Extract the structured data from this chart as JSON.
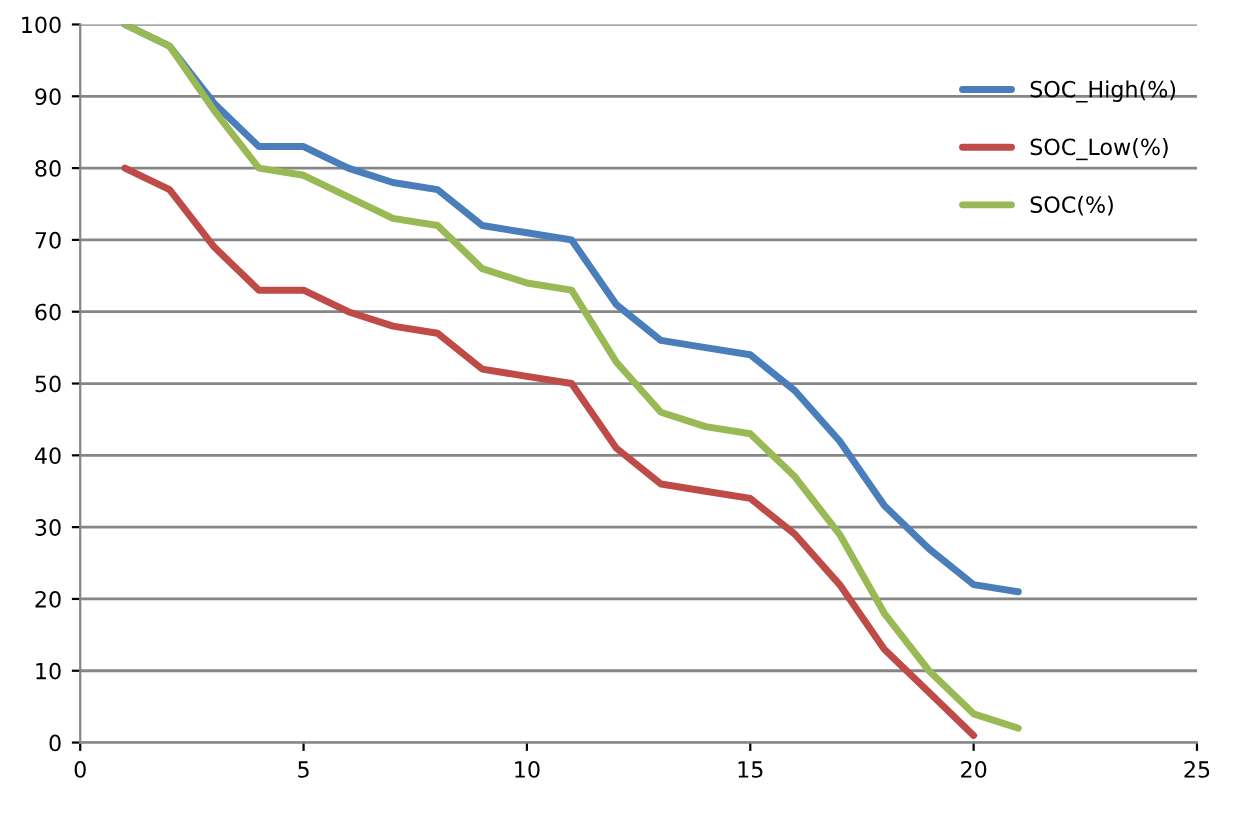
{
  "chart_data": {
    "type": "line",
    "xlim": [
      0,
      25
    ],
    "xticks": [
      0,
      5,
      10,
      15,
      20,
      25
    ],
    "ylim": [
      0,
      100
    ],
    "yticks": [
      0,
      10,
      20,
      30,
      40,
      50,
      60,
      70,
      80,
      90,
      100
    ],
    "grid": "y",
    "legend": "top right",
    "marker": "none",
    "line_style": "solid",
    "series": [
      {
        "name": "SOC_High(%)",
        "color": "#4a7ebb",
        "x": [
          1,
          2,
          3,
          4,
          5,
          6,
          7,
          8,
          9,
          10,
          11,
          12,
          13,
          14,
          15,
          16,
          17,
          18,
          19,
          20,
          21
        ],
        "values": [
          100,
          97,
          89,
          83,
          83,
          80,
          78,
          77,
          72,
          71,
          70,
          61,
          56,
          55,
          54,
          49,
          42,
          33,
          27,
          22,
          21
        ]
      },
      {
        "name": "SOC_Low(%)",
        "color": "#be4b48",
        "x": [
          1,
          2,
          3,
          4,
          5,
          6,
          7,
          8,
          9,
          10,
          11,
          12,
          13,
          14,
          15,
          16,
          17,
          18,
          19,
          20
        ],
        "values": [
          80,
          77,
          69,
          63,
          63,
          60,
          58,
          57,
          52,
          51,
          50,
          41,
          36,
          35,
          34,
          29,
          22,
          13,
          7,
          1
        ]
      },
      {
        "name": "SOC(%)",
        "color": "#98b954",
        "x": [
          1,
          2,
          3,
          4,
          5,
          6,
          7,
          8,
          9,
          10,
          11,
          12,
          13,
          14,
          15,
          16,
          17,
          18,
          19,
          20,
          21
        ],
        "values": [
          100,
          97,
          88,
          80,
          79,
          76,
          73,
          72,
          66,
          64,
          63,
          53,
          46,
          44,
          43,
          37,
          29,
          18,
          10,
          4,
          2
        ]
      }
    ]
  }
}
